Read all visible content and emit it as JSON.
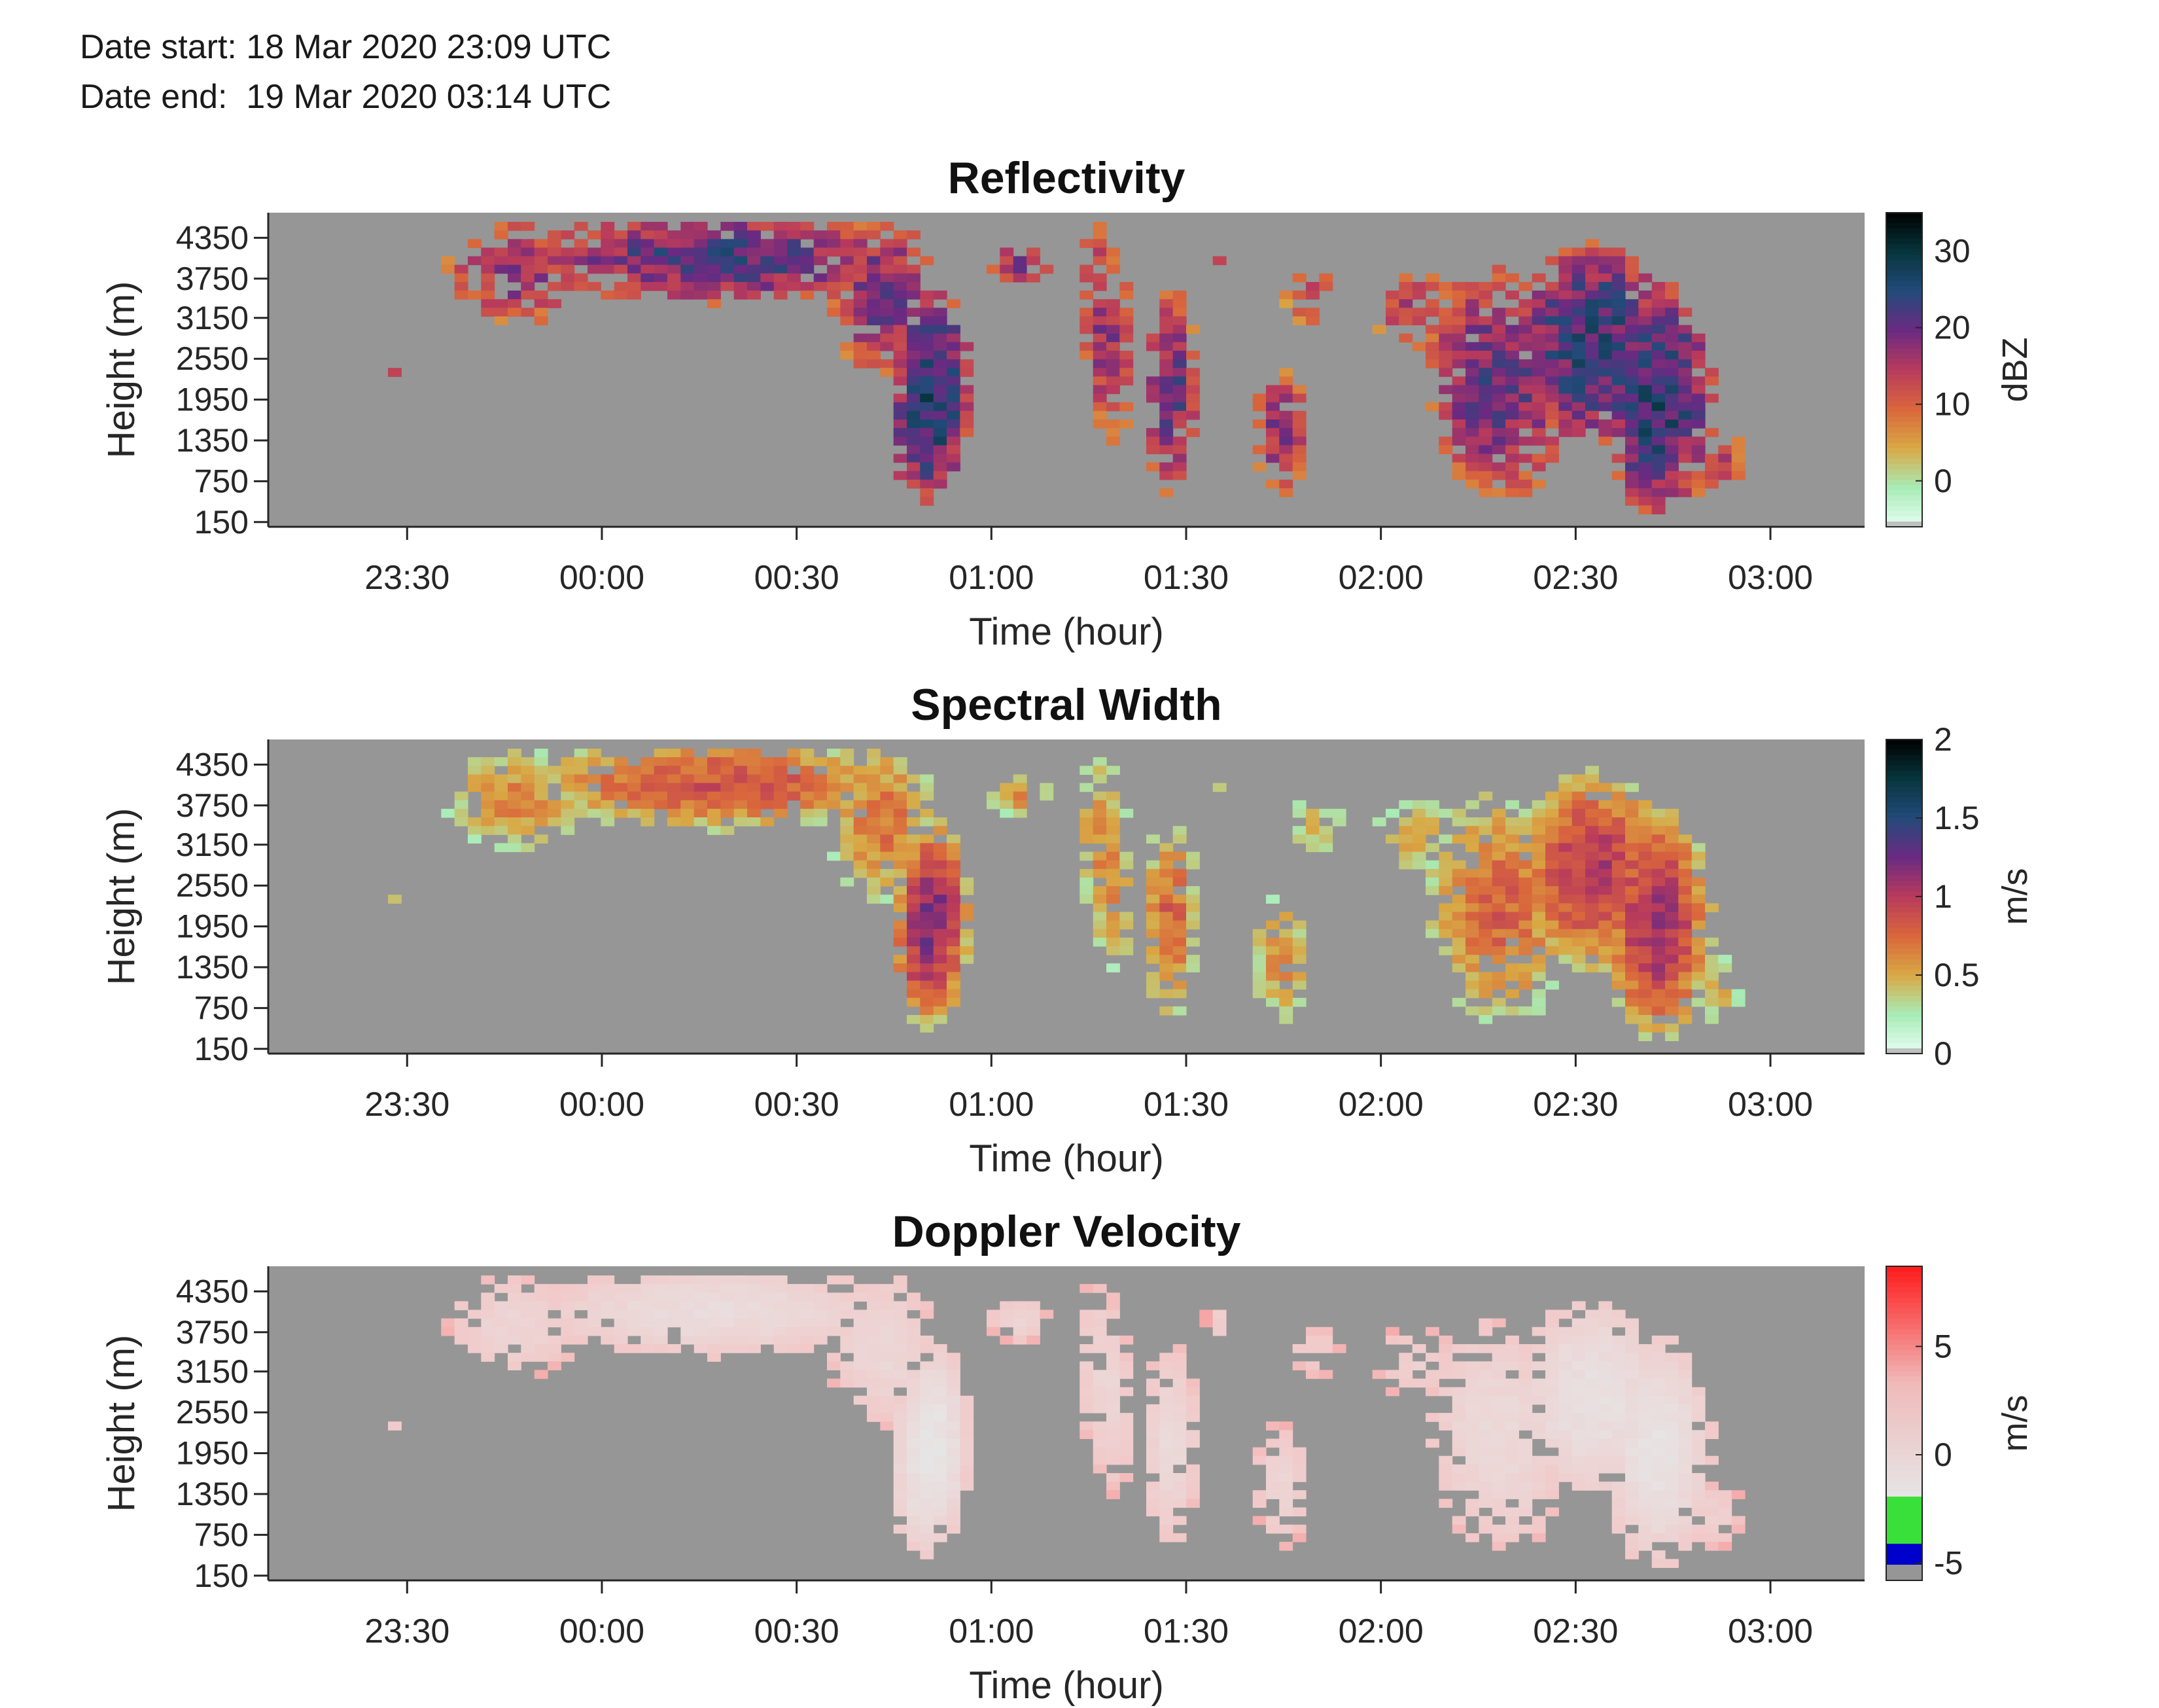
{
  "header": {
    "date_start": "Date start: 18 Mar 2020 23:09 UTC",
    "date_end": "Date end:  19 Mar 2020 03:14 UTC"
  },
  "chart_data": [
    {
      "type": "heatmap",
      "title": "Reflectivity",
      "xlabel": "Time (hour)",
      "ylabel": "Height (m)",
      "x_ticks": [
        "23:30",
        "00:00",
        "00:30",
        "01:00",
        "01:30",
        "02:00",
        "02:30",
        "03:00"
      ],
      "y_ticks": [
        150,
        750,
        1350,
        1950,
        2550,
        3150,
        3750,
        4350
      ],
      "colorbar": {
        "label": "dBZ",
        "ticks": [
          0,
          10,
          20,
          30
        ],
        "range": [
          -6,
          35
        ],
        "colors": [
          "#e6fff3",
          "#a8ebb5",
          "#d9a844",
          "#d9663c",
          "#b83a5c",
          "#6a2a82",
          "#234a7a",
          "#06353d",
          "#000000"
        ]
      },
      "background": "#969696"
    },
    {
      "type": "heatmap",
      "title": "Spectral Width",
      "xlabel": "Time (hour)",
      "ylabel": "Height (m)",
      "x_ticks": [
        "23:30",
        "00:00",
        "00:30",
        "01:00",
        "01:30",
        "02:00",
        "02:30",
        "03:00"
      ],
      "y_ticks": [
        150,
        750,
        1350,
        1950,
        2550,
        3150,
        3750,
        4350
      ],
      "colorbar": {
        "label": "m/s",
        "ticks": [
          "0",
          "0.5",
          "1",
          "1.5",
          "2"
        ],
        "range": [
          0,
          2
        ],
        "colors": [
          "#e6fff3",
          "#a8ebb5",
          "#d9a844",
          "#d9663c",
          "#b83a5c",
          "#6a2a82",
          "#234a7a",
          "#06353d",
          "#000000"
        ]
      },
      "background": "#969696"
    },
    {
      "type": "heatmap",
      "title": "Doppler Velocity",
      "xlabel": "Time (hour)",
      "ylabel": "Height (m)",
      "x_ticks": [
        "23:30",
        "00:00",
        "00:30",
        "01:00",
        "01:30",
        "02:00",
        "02:30",
        "03:00"
      ],
      "y_ticks": [
        150,
        750,
        1350,
        1950,
        2550,
        3150,
        3750,
        4350
      ],
      "colorbar": {
        "label": "m/s",
        "ticks": [
          -5,
          0,
          5
        ],
        "range": [
          -5.8,
          8.7
        ],
        "colors": [
          "#ff1a1a",
          "#f2c8c8",
          "#e6e6e6",
          "#2ae02a"
        ]
      },
      "background": "#969696"
    }
  ]
}
